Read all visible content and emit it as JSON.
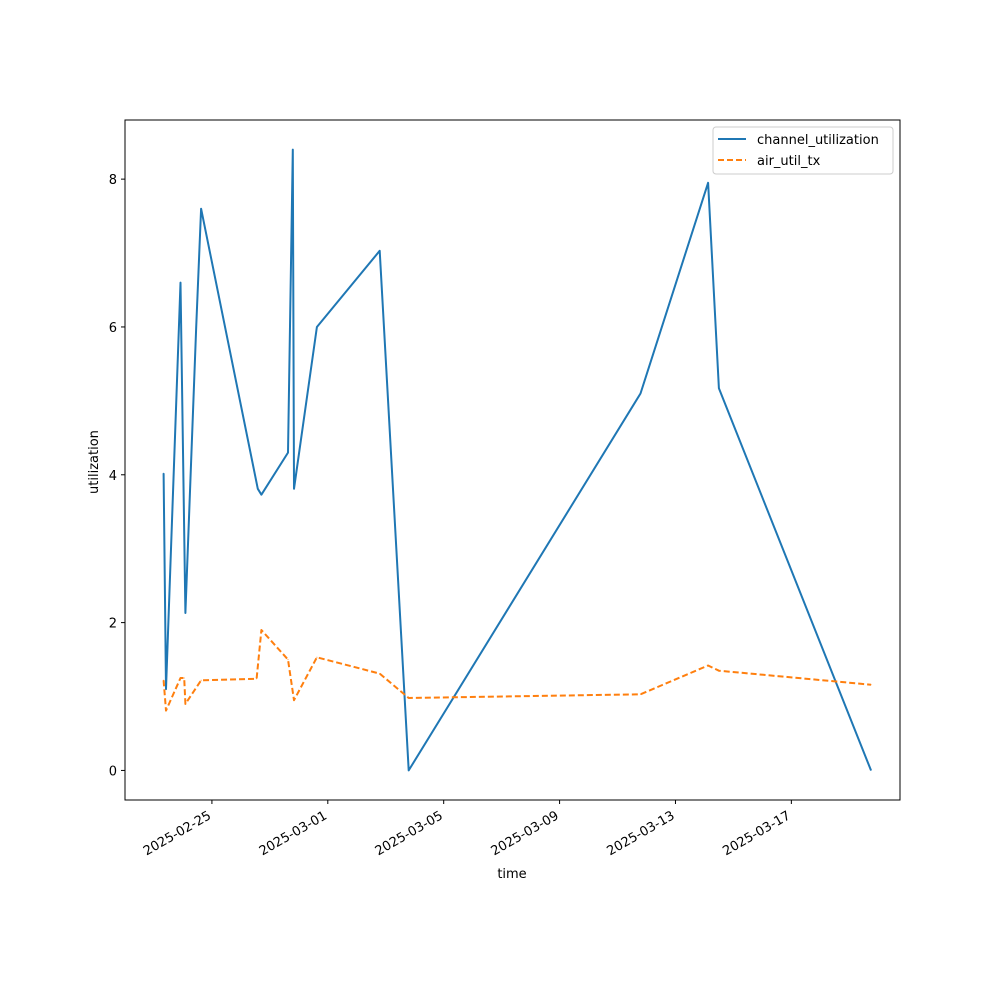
{
  "chart_data": {
    "type": "line",
    "xlabel": "time",
    "ylabel": "utilization",
    "x_type": "date",
    "xlim": [
      "2025-02-22T00:00",
      "2025-03-20T18:00"
    ],
    "ylim": [
      -0.4,
      8.8
    ],
    "x_ticks": [
      "2025-02-25",
      "2025-03-01",
      "2025-03-05",
      "2025-03-09",
      "2025-03-13",
      "2025-03-17"
    ],
    "y_ticks": [
      0,
      2,
      4,
      6,
      8
    ],
    "grid": false,
    "legend_position": "top-right",
    "series": [
      {
        "name": "channel_utilization",
        "color": "#1f77b4",
        "dash": "solid",
        "points": [
          {
            "x": "2025-02-23T08:00",
            "y": 4.02
          },
          {
            "x": "2025-02-23T10:00",
            "y": 1.1
          },
          {
            "x": "2025-02-23T22:00",
            "y": 6.6
          },
          {
            "x": "2025-02-24T02:00",
            "y": 2.13
          },
          {
            "x": "2025-02-24T11:00",
            "y": 6.0
          },
          {
            "x": "2025-02-24T15:00",
            "y": 7.6
          },
          {
            "x": "2025-02-26T14:00",
            "y": 3.81
          },
          {
            "x": "2025-02-26T17:00",
            "y": 3.73
          },
          {
            "x": "2025-02-27T15:00",
            "y": 4.3
          },
          {
            "x": "2025-02-27T19:00",
            "y": 8.4
          },
          {
            "x": "2025-02-27T20:00",
            "y": 3.81
          },
          {
            "x": "2025-02-28T15:00",
            "y": 6.0
          },
          {
            "x": "2025-03-02T19:00",
            "y": 7.03
          },
          {
            "x": "2025-03-03T19:00",
            "y": 0.0
          },
          {
            "x": "2025-03-11T19:00",
            "y": 5.1
          },
          {
            "x": "2025-03-14T03:00",
            "y": 7.95
          },
          {
            "x": "2025-03-14T12:00",
            "y": 5.17
          },
          {
            "x": "2025-03-19T18:00",
            "y": 0.0
          }
        ]
      },
      {
        "name": "air_util_tx",
        "color": "#ff7f0e",
        "dash": "dashed",
        "points": [
          {
            "x": "2025-02-23T08:00",
            "y": 1.22
          },
          {
            "x": "2025-02-23T10:00",
            "y": 0.81
          },
          {
            "x": "2025-02-23T22:00",
            "y": 1.25
          },
          {
            "x": "2025-02-24T01:00",
            "y": 1.25
          },
          {
            "x": "2025-02-24T02:00",
            "y": 0.9
          },
          {
            "x": "2025-02-24T15:00",
            "y": 1.22
          },
          {
            "x": "2025-02-26T13:00",
            "y": 1.24
          },
          {
            "x": "2025-02-26T17:00",
            "y": 1.9
          },
          {
            "x": "2025-02-27T15:00",
            "y": 1.5
          },
          {
            "x": "2025-02-27T20:00",
            "y": 0.95
          },
          {
            "x": "2025-02-28T15:00",
            "y": 1.53
          },
          {
            "x": "2025-03-02T19:00",
            "y": 1.31
          },
          {
            "x": "2025-03-03T19:00",
            "y": 0.98
          },
          {
            "x": "2025-03-11T19:00",
            "y": 1.03
          },
          {
            "x": "2025-03-14T03:00",
            "y": 1.42
          },
          {
            "x": "2025-03-14T12:00",
            "y": 1.35
          },
          {
            "x": "2025-03-19T18:00",
            "y": 1.16
          }
        ]
      }
    ]
  }
}
